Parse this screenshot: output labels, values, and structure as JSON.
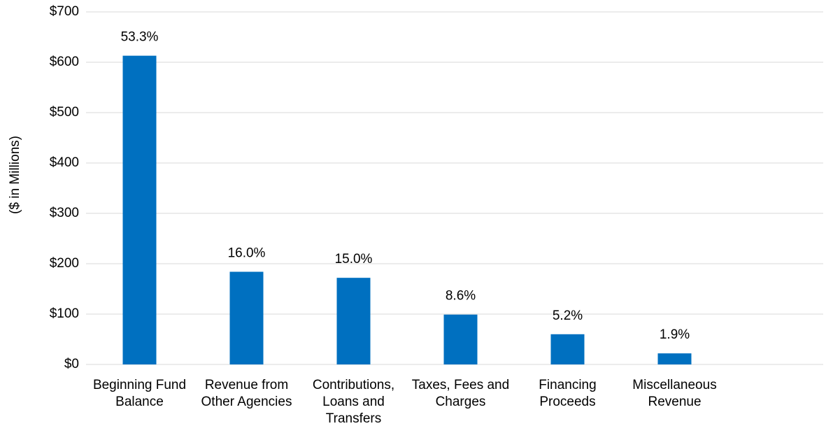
{
  "chart_data": {
    "type": "bar",
    "ylabel": "($ in Millions)",
    "categories": [
      "Beginning Fund Balance",
      "Revenue from Other Agencies",
      "Contributions, Loans and Transfers",
      "Taxes, Fees and Charges",
      "Financing Proceeds",
      "Miscellaneous Revenue"
    ],
    "values": [
      613,
      184,
      172,
      99,
      60,
      22
    ],
    "value_labels": [
      "53.3%",
      "16.0%",
      "15.0%",
      "8.6%",
      "5.2%",
      "1.9%"
    ],
    "color": "#0070c0",
    "ylim": [
      0,
      700
    ],
    "yticks": [
      {
        "value": 0,
        "label": "$0"
      },
      {
        "value": 100,
        "label": "$100"
      },
      {
        "value": 200,
        "label": "$200"
      },
      {
        "value": 300,
        "label": "$300"
      },
      {
        "value": 400,
        "label": "$400"
      },
      {
        "value": 500,
        "label": "$500"
      },
      {
        "value": 600,
        "label": "$600"
      },
      {
        "value": 700,
        "label": "$700"
      }
    ],
    "grid": true
  }
}
